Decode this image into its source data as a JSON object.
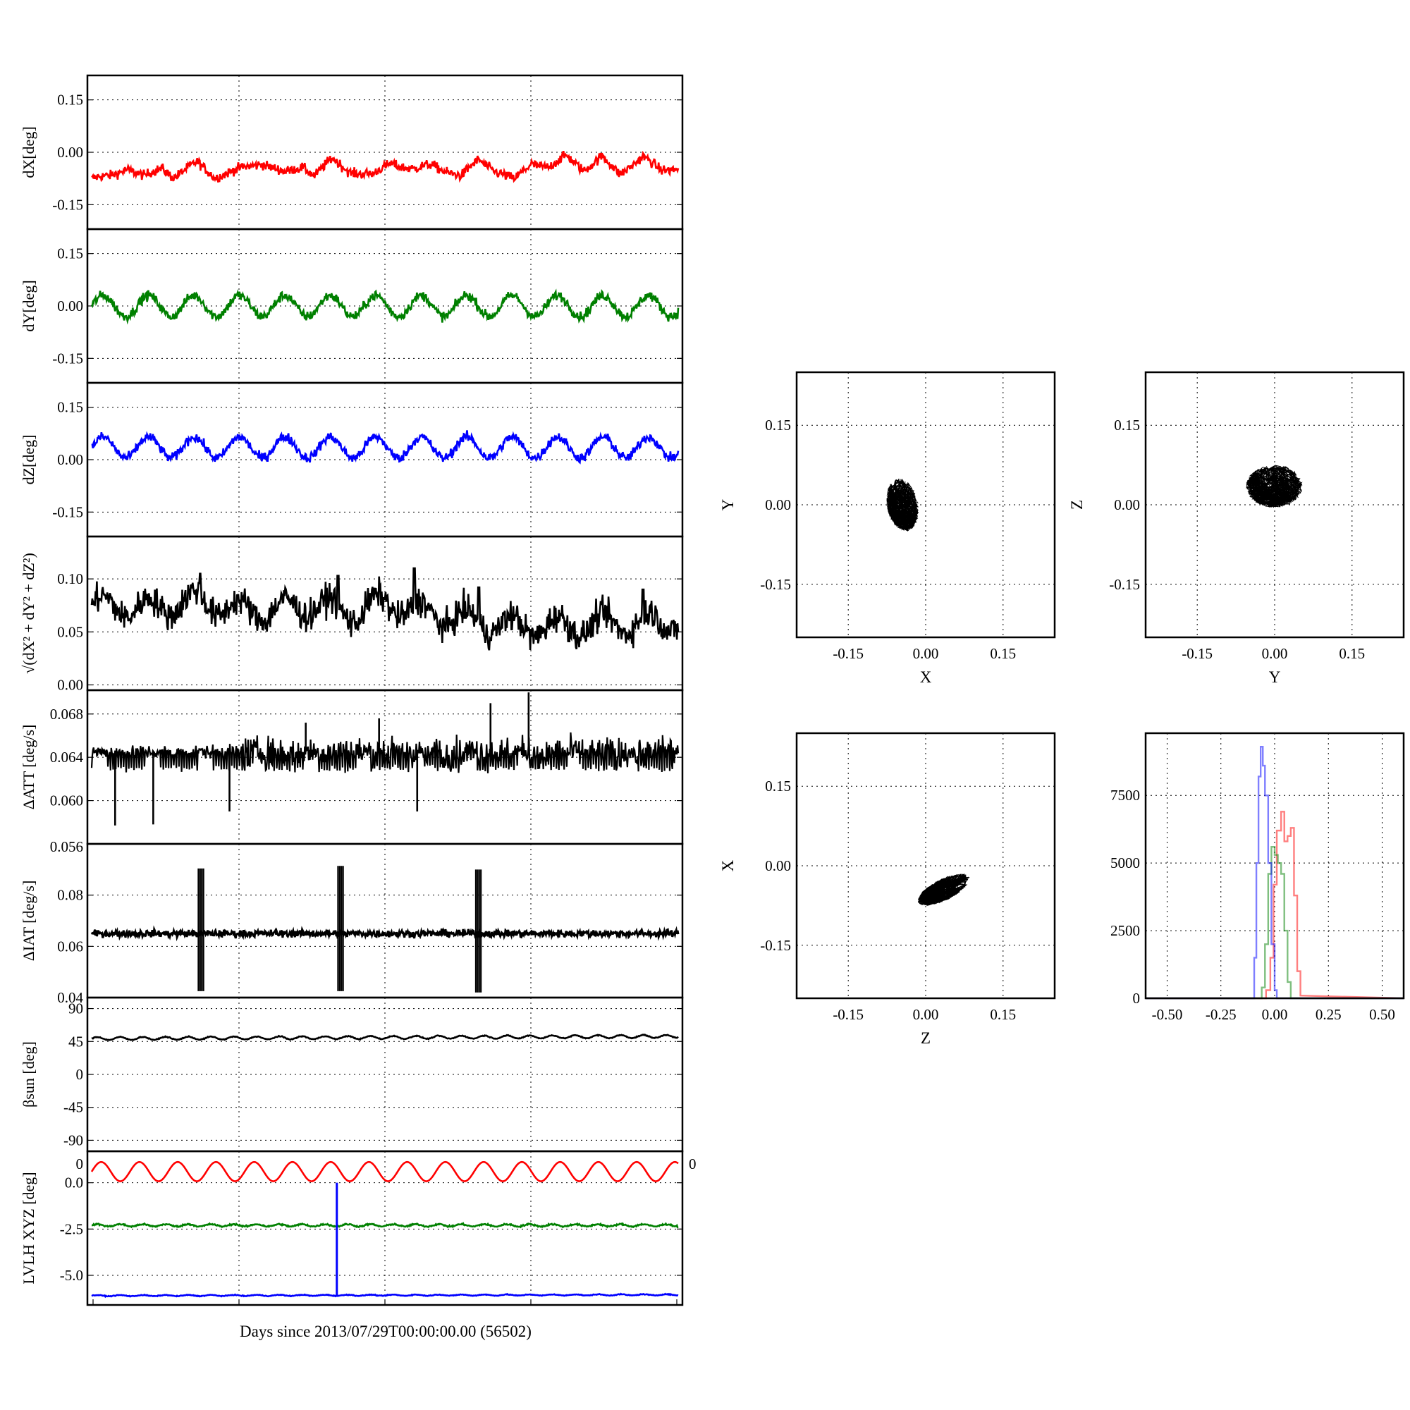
{
  "figure": {
    "colors": {
      "x": "#ff0000",
      "y": "#008000",
      "z": "#0000ff",
      "mag": "#000000"
    },
    "xlabel": "Days since 2013/07/29T00:00:00.00 (56502)",
    "stray_tick_labels": {
      "att_bottom": "0.056",
      "lvlh_top_left": "0",
      "lvlh_top_right": "0"
    }
  },
  "chart_data": [
    {
      "id": "dX",
      "type": "line",
      "ylabel": "dX[deg]",
      "ylim": [
        -0.22,
        0.22
      ],
      "yticks": [
        0.15,
        0.0,
        -0.15
      ],
      "yticklabels": [
        "0.15",
        "0.00",
        "-0.15"
      ],
      "series": [
        {
          "color": "#ff0000",
          "profile": [
            [
              0,
              -0.075
            ],
            [
              0.03,
              -0.07
            ],
            [
              0.06,
              -0.045
            ],
            [
              0.09,
              -0.07
            ],
            [
              0.12,
              -0.045
            ],
            [
              0.14,
              -0.07
            ],
            [
              0.18,
              -0.03
            ],
            [
              0.21,
              -0.07
            ],
            [
              0.25,
              -0.05
            ],
            [
              0.29,
              -0.03
            ],
            [
              0.33,
              -0.06
            ],
            [
              0.36,
              -0.04
            ],
            [
              0.38,
              -0.065
            ],
            [
              0.41,
              -0.02
            ],
            [
              0.44,
              -0.055
            ],
            [
              0.48,
              -0.065
            ],
            [
              0.51,
              -0.03
            ],
            [
              0.55,
              -0.05
            ],
            [
              0.58,
              -0.035
            ],
            [
              0.6,
              -0.05
            ],
            [
              0.63,
              -0.07
            ],
            [
              0.66,
              -0.02
            ],
            [
              0.69,
              -0.055
            ],
            [
              0.72,
              -0.08
            ],
            [
              0.75,
              -0.03
            ],
            [
              0.78,
              -0.045
            ],
            [
              0.81,
              -0.01
            ],
            [
              0.84,
              -0.05
            ],
            [
              0.87,
              -0.015
            ],
            [
              0.9,
              -0.06
            ],
            [
              0.94,
              -0.015
            ],
            [
              0.97,
              -0.05
            ],
            [
              1.0,
              -0.045
            ]
          ],
          "period": 0.0775,
          "amplitude": 0.004,
          "noise": 0.007
        }
      ]
    },
    {
      "id": "dY",
      "type": "line",
      "ylabel": "dY[deg]",
      "ylim": [
        -0.22,
        0.22
      ],
      "yticks": [
        0.15,
        0.0,
        -0.15
      ],
      "yticklabels": [
        "0.15",
        "0.00",
        "-0.15"
      ],
      "series": [
        {
          "color": "#008000",
          "profile": [
            [
              0,
              0.0
            ],
            [
              1,
              0.0
            ]
          ],
          "period": 0.0775,
          "amplitude": 0.03,
          "noise": 0.007
        }
      ]
    },
    {
      "id": "dZ",
      "type": "line",
      "ylabel": "dZ[deg]",
      "ylim": [
        -0.22,
        0.22
      ],
      "yticks": [
        0.15,
        0.0,
        -0.15
      ],
      "yticklabels": [
        "0.15",
        "0.00",
        "-0.15"
      ],
      "series": [
        {
          "color": "#0000ff",
          "profile": [
            [
              0,
              0.035
            ],
            [
              1,
              0.035
            ]
          ],
          "period": 0.0775,
          "amplitude": 0.03,
          "noise": 0.007
        }
      ]
    },
    {
      "id": "mag",
      "type": "line",
      "ylabel": "√(dX² + dY² + dZ²)",
      "ylim": [
        -0.005,
        0.14
      ],
      "yticks": [
        0.1,
        0.05,
        0.0
      ],
      "yticklabels": [
        "0.10",
        "0.05",
        "0.00"
      ],
      "series": [
        {
          "color": "#000000",
          "profile": [
            [
              0,
              0.075
            ],
            [
              0.1,
              0.072
            ],
            [
              0.18,
              0.08
            ],
            [
              0.25,
              0.07
            ],
            [
              0.3,
              0.07
            ],
            [
              0.38,
              0.075
            ],
            [
              0.45,
              0.068
            ],
            [
              0.5,
              0.078
            ],
            [
              0.55,
              0.07
            ],
            [
              0.65,
              0.06
            ],
            [
              0.72,
              0.055
            ],
            [
              0.8,
              0.055
            ],
            [
              0.9,
              0.058
            ],
            [
              1.0,
              0.06
            ]
          ],
          "period": 0.0775,
          "amplitude": 0.01,
          "noise": 0.007,
          "spikes": [
            [
              0.185,
              0.105
            ],
            [
              0.42,
              0.103
            ],
            [
              0.55,
              0.11
            ],
            [
              0.66,
              0.092
            ],
            [
              0.94,
              0.09
            ]
          ]
        }
      ]
    },
    {
      "id": "datt",
      "type": "line",
      "ylabel": "ΔATT [deg/s]",
      "ylim": [
        0.056,
        0.0702
      ],
      "yticks": [
        0.068,
        0.064,
        0.06
      ],
      "yticklabels": [
        "0.068",
        "0.064",
        "0.060"
      ],
      "series": [
        {
          "color": "#000000",
          "base": 0.0645,
          "noise": 0.0003,
          "dip_to": 0.063,
          "dip_every": 0.0045,
          "spikes_down": [
            [
              0.04,
              0.0577
            ],
            [
              0.105,
              0.0578
            ],
            [
              0.235,
              0.059
            ],
            [
              0.555,
              0.059
            ]
          ],
          "spikes_up": [
            [
              0.365,
              0.0672
            ],
            [
              0.49,
              0.0676
            ],
            [
              0.68,
              0.069
            ],
            [
              0.745,
              0.07
            ]
          ]
        }
      ]
    },
    {
      "id": "diat",
      "type": "line",
      "ylabel": "ΔIAT [deg/s]",
      "ylim": [
        0.04,
        0.1
      ],
      "yticks": [
        0.08,
        0.06,
        0.04
      ],
      "yticklabels": [
        "0.08",
        "0.06",
        "0.04"
      ],
      "series": [
        {
          "color": "#000000",
          "base": 0.065,
          "noise": 0.0007,
          "bursts": [
            [
              0.182,
              0.0904,
              0.0425
            ],
            [
              0.42,
              0.0914,
              0.0425
            ],
            [
              0.655,
              0.09,
              0.042
            ]
          ]
        }
      ]
    },
    {
      "id": "beta",
      "type": "line",
      "ylabel": "βsun [deg]",
      "ylim": [
        -105,
        105
      ],
      "yticks": [
        90,
        45,
        0,
        -45,
        -90
      ],
      "yticklabels": [
        "90",
        "45",
        "0",
        "-45",
        "-90"
      ],
      "series": [
        {
          "color": "#000000",
          "profile": [
            [
              0,
              49
            ],
            [
              1,
              52
            ]
          ],
          "period": 0.0388,
          "amplitude": 2.0,
          "noise": 0.3
        }
      ]
    },
    {
      "id": "lvlh",
      "type": "line",
      "ylabel": "LVLH XYZ [deg]",
      "ylim": [
        -6.6,
        1.7
      ],
      "yticks": [
        0.0,
        -2.5,
        -5.0
      ],
      "yticklabels": [
        "0.0",
        "-2.5",
        "-5.0"
      ],
      "series": [
        {
          "color": "#ff0000",
          "profile": [
            [
              0,
              0.6
            ],
            [
              1,
              0.6
            ]
          ],
          "period": 0.0652,
          "amplitude": 0.52,
          "noise": 0.0
        },
        {
          "color": "#008000",
          "profile": [
            [
              0,
              -2.3
            ],
            [
              1,
              -2.3
            ]
          ],
          "period": 0.0388,
          "amplitude": 0.06,
          "noise": 0.02
        },
        {
          "color": "#0000ff",
          "profile": [
            [
              0,
              -6.1
            ],
            [
              1,
              -6.05
            ]
          ],
          "period": 0.0388,
          "amplitude": 0.03,
          "noise": 0.01,
          "spike": [
            0.418,
            0.0
          ]
        }
      ]
    },
    {
      "id": "xy",
      "type": "scatter",
      "xlabel": "X",
      "ylabel": "Y",
      "xlim": [
        -0.25,
        0.25
      ],
      "ylim": [
        -0.25,
        0.25
      ],
      "ticks": [
        -0.15,
        0.0,
        0.15
      ],
      "ticklabels": [
        "-0.15",
        "0.00",
        "0.15"
      ],
      "cloud": {
        "cx": -0.045,
        "cy": 0.0,
        "rx": 0.03,
        "ry": 0.05,
        "tilt": 0.2
      }
    },
    {
      "id": "yz",
      "type": "scatter",
      "xlabel": "Y",
      "ylabel": "Z",
      "xlim": [
        -0.25,
        0.25
      ],
      "ylim": [
        -0.25,
        0.25
      ],
      "ticks": [
        -0.15,
        0.0,
        0.15
      ],
      "ticklabels": [
        "-0.15",
        "0.00",
        "0.15"
      ],
      "cloud": {
        "cx": 0.0,
        "cy": 0.035,
        "rx": 0.055,
        "ry": 0.04,
        "tilt": 0.0
      }
    },
    {
      "id": "zx",
      "type": "scatter",
      "xlabel": "Z",
      "ylabel": "X",
      "xlim": [
        -0.25,
        0.25
      ],
      "ylim": [
        -0.25,
        0.25
      ],
      "ticks": [
        -0.15,
        0.0,
        0.15
      ],
      "ticklabels": [
        "-0.15",
        "0.00",
        "0.15"
      ],
      "cloud": {
        "cx": 0.035,
        "cy": -0.045,
        "rx": 0.055,
        "ry": 0.02,
        "tilt": 0.45
      }
    },
    {
      "id": "hist",
      "type": "histogram",
      "xlim": [
        -0.6,
        0.6
      ],
      "ylim": [
        0,
        9800
      ],
      "xticks": [
        -0.5,
        -0.25,
        0.0,
        0.25,
        0.5
      ],
      "xticklabels": [
        "-0.50",
        "-0.25",
        "0.00",
        "0.25",
        "0.50"
      ],
      "yticks": [
        7500,
        5000,
        2500,
        0
      ],
      "yticklabels": [
        "7500",
        "5000",
        "2500",
        "0"
      ],
      "series": [
        {
          "color": "#ff0000",
          "bins": [
            [
              -0.06,
              0
            ],
            [
              -0.04,
              300
            ],
            [
              -0.02,
              1500
            ],
            [
              -0.005,
              4200
            ],
            [
              0.01,
              6200
            ],
            [
              0.03,
              6900
            ],
            [
              0.045,
              5800
            ],
            [
              0.06,
              6000
            ],
            [
              0.075,
              6300
            ],
            [
              0.09,
              3800
            ],
            [
              0.105,
              1000
            ],
            [
              0.12,
              100
            ]
          ]
        },
        {
          "color": "#008000",
          "bins": [
            [
              -0.08,
              0
            ],
            [
              -0.06,
              400
            ],
            [
              -0.045,
              2000
            ],
            [
              -0.03,
              4600
            ],
            [
              -0.015,
              5600
            ],
            [
              0.0,
              5300
            ],
            [
              0.015,
              5000
            ],
            [
              0.03,
              4600
            ],
            [
              0.045,
              2500
            ],
            [
              0.06,
              600
            ],
            [
              0.075,
              0
            ]
          ]
        },
        {
          "color": "#0000ff",
          "bins": [
            [
              -0.11,
              0
            ],
            [
              -0.095,
              1500
            ],
            [
              -0.085,
              5000
            ],
            [
              -0.075,
              8200
            ],
            [
              -0.065,
              9300
            ],
            [
              -0.055,
              8600
            ],
            [
              -0.045,
              7500
            ],
            [
              -0.03,
              5000
            ],
            [
              -0.015,
              2000
            ],
            [
              0.0,
              300
            ],
            [
              0.01,
              0
            ]
          ]
        }
      ]
    }
  ]
}
